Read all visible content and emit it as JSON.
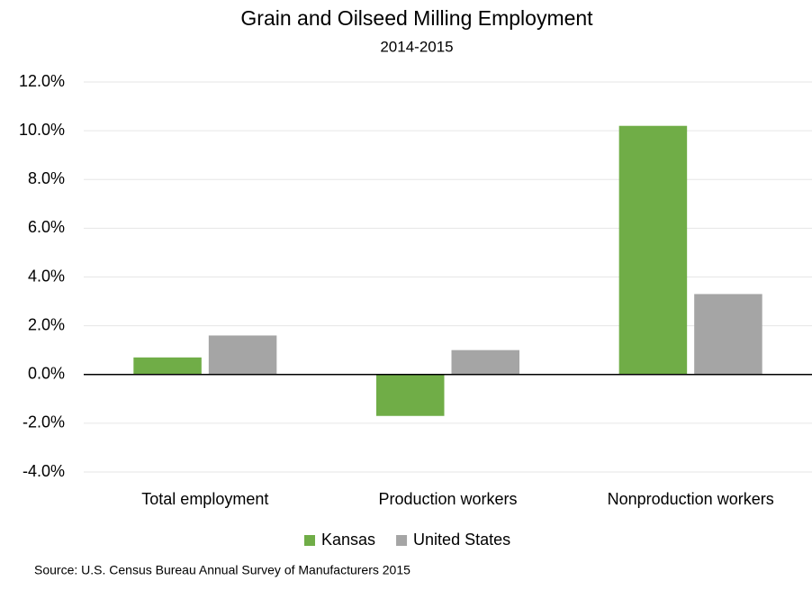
{
  "chart_data": {
    "type": "bar",
    "title": "Grain and Oilseed Milling Employment",
    "subtitle": "2014-2015",
    "categories": [
      "Total employment",
      "Production workers",
      "Nonproduction workers"
    ],
    "series": [
      {
        "name": "Kansas",
        "color": "#70ad47",
        "values": [
          0.7,
          -1.7,
          10.2
        ]
      },
      {
        "name": "United States",
        "color": "#a5a5a5",
        "values": [
          1.6,
          1.0,
          3.3
        ]
      }
    ],
    "ylim": [
      -4,
      12
    ],
    "yticks": [
      {
        "value": -4,
        "label": "-4.0%"
      },
      {
        "value": -2,
        "label": "-2.0%"
      },
      {
        "value": 0,
        "label": "0.0%"
      },
      {
        "value": 2,
        "label": "2.0%"
      },
      {
        "value": 4,
        "label": "4.0%"
      },
      {
        "value": 6,
        "label": "6.0%"
      },
      {
        "value": 8,
        "label": "8.0%"
      },
      {
        "value": 10,
        "label": "10.0%"
      },
      {
        "value": 12,
        "label": "12.0%"
      }
    ],
    "grid": true,
    "legend": "bottom",
    "source": "Source:  U.S. Census Bureau Annual Survey of Manufacturers 2015"
  }
}
